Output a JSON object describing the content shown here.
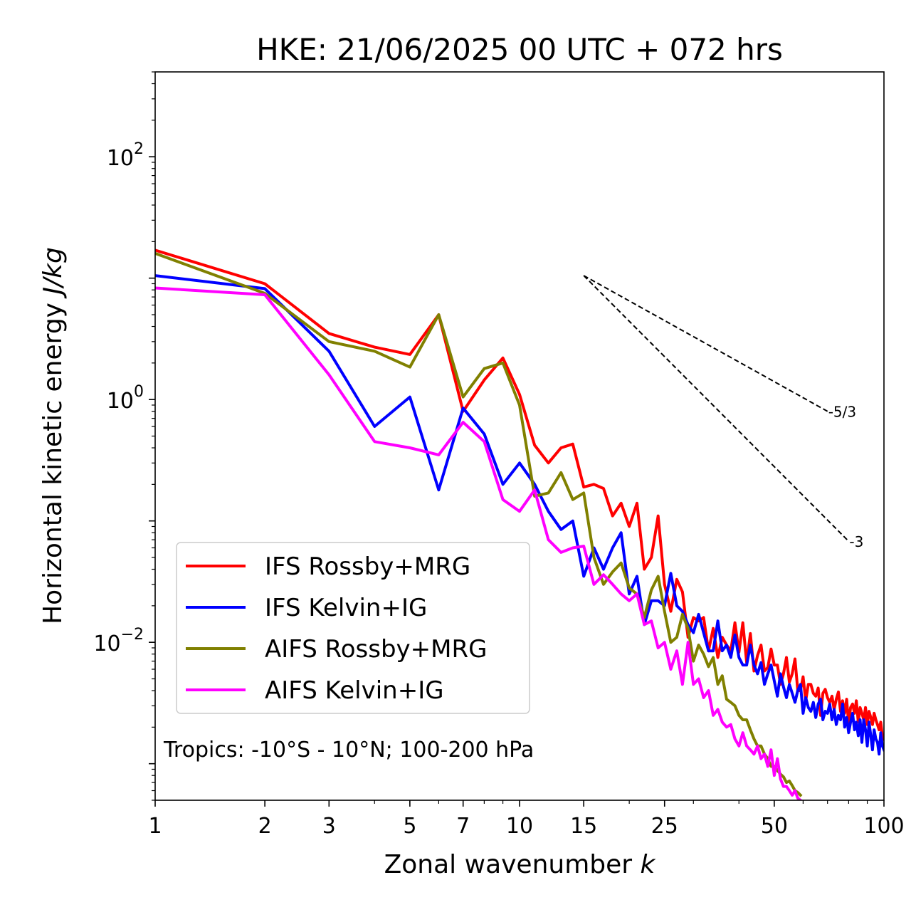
{
  "chart_data": {
    "type": "line",
    "title": "HKE: 21/06/2025 00 UTC + 072 hrs",
    "xlabel": "Zonal wavenumber",
    "xlabel_var": "k",
    "ylabel": "Horizontal kinetic energy",
    "ylabel_unit": "J/kg",
    "xscale": "log",
    "yscale": "log",
    "xlim": [
      1,
      100
    ],
    "ylim": [
      0.0005,
      500
    ],
    "xticks": [
      1,
      2,
      3,
      5,
      7,
      10,
      15,
      25,
      50,
      100
    ],
    "xtick_labels": [
      "1",
      "2",
      "3",
      "5",
      "7",
      "10",
      "15",
      "25",
      "50",
      "100"
    ],
    "yticks": [
      0.01,
      1,
      100
    ],
    "ytick_labels": [
      {
        "base": "10",
        "exp": "−2"
      },
      {
        "base": "10",
        "exp": "0"
      },
      {
        "base": "10",
        "exp": "2"
      }
    ],
    "legend": {
      "position": "lower-left"
    },
    "annotation": "Tropics: -10°S - 10°N; 100-200 hPa",
    "grid": false,
    "reference_slopes": [
      {
        "label": "-5/3",
        "x": [
          15,
          70
        ],
        "y": [
          10.5,
          0.8
        ]
      },
      {
        "label": "-3",
        "x": [
          15,
          80
        ],
        "y": [
          10.5,
          0.068
        ]
      }
    ],
    "series": [
      {
        "name": "IFS Rossby+MRG",
        "color": "#ff0000",
        "x": [
          1,
          2,
          3,
          4,
          5,
          6,
          7,
          8,
          9,
          10,
          11,
          12,
          13,
          14,
          15,
          16,
          17,
          18,
          19,
          20,
          21,
          22,
          23,
          24,
          25,
          26,
          27,
          28,
          29,
          30,
          31,
          32,
          33,
          34,
          35,
          36,
          37,
          38,
          39,
          40,
          41,
          42,
          43,
          44,
          45,
          46,
          47,
          48,
          49,
          50,
          51,
          52,
          53,
          54,
          55,
          56,
          57,
          58,
          59,
          60,
          61,
          62,
          63,
          64,
          65,
          66,
          67,
          68,
          69,
          70,
          71,
          72,
          73,
          74,
          75,
          76,
          77,
          78,
          79,
          80,
          81,
          82,
          83,
          84,
          85,
          86,
          87,
          88,
          89,
          90,
          91,
          92,
          93,
          94,
          95,
          96,
          97,
          98,
          99,
          100
        ],
        "y": [
          17,
          9,
          3.5,
          2.7,
          2.35,
          5,
          0.8,
          1.45,
          2.2,
          1.1,
          0.42,
          0.3,
          0.4,
          0.43,
          0.19,
          0.2,
          0.185,
          0.11,
          0.14,
          0.09,
          0.14,
          0.04,
          0.05,
          0.11,
          0.03,
          0.018,
          0.033,
          0.026,
          0.011,
          0.016,
          0.015,
          0.016,
          0.0085,
          0.013,
          0.0075,
          0.011,
          0.0095,
          0.0085,
          0.0145,
          0.0083,
          0.0145,
          0.0068,
          0.0118,
          0.0058,
          0.0078,
          0.0095,
          0.0058,
          0.0062,
          0.0088,
          0.0065,
          0.0065,
          0.0045,
          0.0055,
          0.0075,
          0.0047,
          0.0055,
          0.0073,
          0.004,
          0.004,
          0.0052,
          0.0033,
          0.0045,
          0.0045,
          0.0038,
          0.0036,
          0.0042,
          0.0025,
          0.0038,
          0.0041,
          0.0035,
          0.0032,
          0.0036,
          0.0028,
          0.0034,
          0.0039,
          0.0027,
          0.0033,
          0.0026,
          0.0034,
          0.0021,
          0.0029,
          0.0031,
          0.0026,
          0.0033,
          0.0022,
          0.0029,
          0.0026,
          0.0023,
          0.0029,
          0.0021,
          0.0027,
          0.0024,
          0.0021,
          0.0026,
          0.0023,
          0.0021,
          0.0019,
          0.0022,
          0.0017,
          0.0016
        ]
      },
      {
        "name": "IFS Kelvin+IG",
        "color": "#0000ff",
        "x": [
          1,
          2,
          3,
          4,
          5,
          6,
          7,
          8,
          9,
          10,
          11,
          12,
          13,
          14,
          15,
          16,
          17,
          18,
          19,
          20,
          21,
          22,
          23,
          24,
          25,
          26,
          27,
          28,
          29,
          30,
          31,
          32,
          33,
          34,
          35,
          36,
          37,
          38,
          39,
          40,
          41,
          42,
          43,
          44,
          45,
          46,
          47,
          48,
          49,
          50,
          51,
          52,
          53,
          54,
          55,
          56,
          57,
          58,
          59,
          60,
          61,
          62,
          63,
          64,
          65,
          66,
          67,
          68,
          69,
          70,
          71,
          72,
          73,
          74,
          75,
          76,
          77,
          78,
          79,
          80,
          81,
          82,
          83,
          84,
          85,
          86,
          87,
          88,
          89,
          90,
          91,
          92,
          93,
          94,
          95,
          96,
          97,
          98,
          99,
          100
        ],
        "y": [
          10.5,
          8.2,
          2.5,
          0.6,
          1.05,
          0.18,
          0.85,
          0.52,
          0.2,
          0.3,
          0.2,
          0.12,
          0.085,
          0.1,
          0.035,
          0.06,
          0.04,
          0.06,
          0.08,
          0.025,
          0.035,
          0.014,
          0.022,
          0.022,
          0.02,
          0.037,
          0.02,
          0.018,
          0.014,
          0.012,
          0.017,
          0.012,
          0.0085,
          0.0085,
          0.015,
          0.0085,
          0.0095,
          0.0075,
          0.0115,
          0.0075,
          0.0065,
          0.0065,
          0.0095,
          0.0065,
          0.0055,
          0.0068,
          0.0045,
          0.0055,
          0.0065,
          0.0048,
          0.0036,
          0.0055,
          0.0043,
          0.0035,
          0.0045,
          0.0038,
          0.0032,
          0.004,
          0.0045,
          0.0026,
          0.0035,
          0.0029,
          0.0027,
          0.0032,
          0.0024,
          0.0031,
          0.0034,
          0.0023,
          0.0027,
          0.0026,
          0.0031,
          0.0023,
          0.0028,
          0.0021,
          0.0025,
          0.0023,
          0.0031,
          0.002,
          0.0024,
          0.0018,
          0.0022,
          0.0026,
          0.0019,
          0.0022,
          0.0017,
          0.0023,
          0.0015,
          0.0023,
          0.0019,
          0.0014,
          0.0022,
          0.0017,
          0.0013,
          0.0019,
          0.0016,
          0.0015,
          0.0012,
          0.0018,
          0.0014,
          0.0013
        ]
      },
      {
        "name": "AIFS Rossby+MRG",
        "color": "#808000",
        "x": [
          1,
          2,
          3,
          4,
          5,
          6,
          7,
          8,
          9,
          10,
          11,
          12,
          13,
          14,
          15,
          16,
          17,
          18,
          19,
          20,
          21,
          22,
          23,
          24,
          25,
          26,
          27,
          28,
          29,
          30,
          31,
          32,
          33,
          34,
          35,
          36,
          37,
          38,
          39,
          40,
          41,
          42,
          43,
          44,
          45,
          46,
          47,
          48,
          49,
          50,
          51,
          52,
          53,
          54,
          55,
          56,
          57,
          58,
          59
        ],
        "y": [
          16,
          7.5,
          3.0,
          2.5,
          1.85,
          5,
          1.05,
          1.8,
          2,
          0.9,
          0.16,
          0.17,
          0.25,
          0.15,
          0.17,
          0.05,
          0.03,
          0.038,
          0.045,
          0.028,
          0.025,
          0.016,
          0.027,
          0.035,
          0.018,
          0.01,
          0.011,
          0.017,
          0.013,
          0.007,
          0.0095,
          0.008,
          0.0063,
          0.0075,
          0.0045,
          0.0053,
          0.0034,
          0.0032,
          0.003,
          0.0025,
          0.0023,
          0.0023,
          0.0019,
          0.0016,
          0.0014,
          0.0014,
          0.0012,
          0.0011,
          0.00095,
          0.00095,
          0.00088,
          0.00082,
          0.00078,
          0.0007,
          0.00072,
          0.00066,
          0.0006,
          0.00058,
          0.00055
        ]
      },
      {
        "name": "AIFS Kelvin+IG",
        "color": "#ff00ff",
        "x": [
          1,
          2,
          3,
          4,
          5,
          6,
          7,
          8,
          9,
          10,
          11,
          12,
          13,
          14,
          15,
          16,
          17,
          18,
          19,
          20,
          21,
          22,
          23,
          24,
          25,
          26,
          27,
          28,
          29,
          30,
          31,
          32,
          33,
          34,
          35,
          36,
          37,
          38,
          39,
          40,
          41,
          42,
          43,
          44,
          45,
          46,
          47,
          48,
          49,
          50,
          51,
          52,
          53,
          54,
          55,
          56,
          57,
          58,
          59
        ],
        "y": [
          8.3,
          7.3,
          1.6,
          0.45,
          0.4,
          0.35,
          0.65,
          0.45,
          0.15,
          0.12,
          0.18,
          0.07,
          0.055,
          0.06,
          0.062,
          0.03,
          0.036,
          0.03,
          0.025,
          0.022,
          0.025,
          0.014,
          0.015,
          0.009,
          0.01,
          0.006,
          0.0085,
          0.0045,
          0.01,
          0.0045,
          0.005,
          0.0035,
          0.004,
          0.0025,
          0.0028,
          0.0022,
          0.002,
          0.0021,
          0.0016,
          0.0014,
          0.0018,
          0.0014,
          0.0013,
          0.0012,
          0.0014,
          0.0011,
          0.0012,
          0.00095,
          0.0013,
          0.0008,
          0.0011,
          0.00075,
          0.00065,
          0.00065,
          0.0006,
          0.00055,
          0.0006,
          0.00052,
          0.0005
        ]
      }
    ]
  }
}
